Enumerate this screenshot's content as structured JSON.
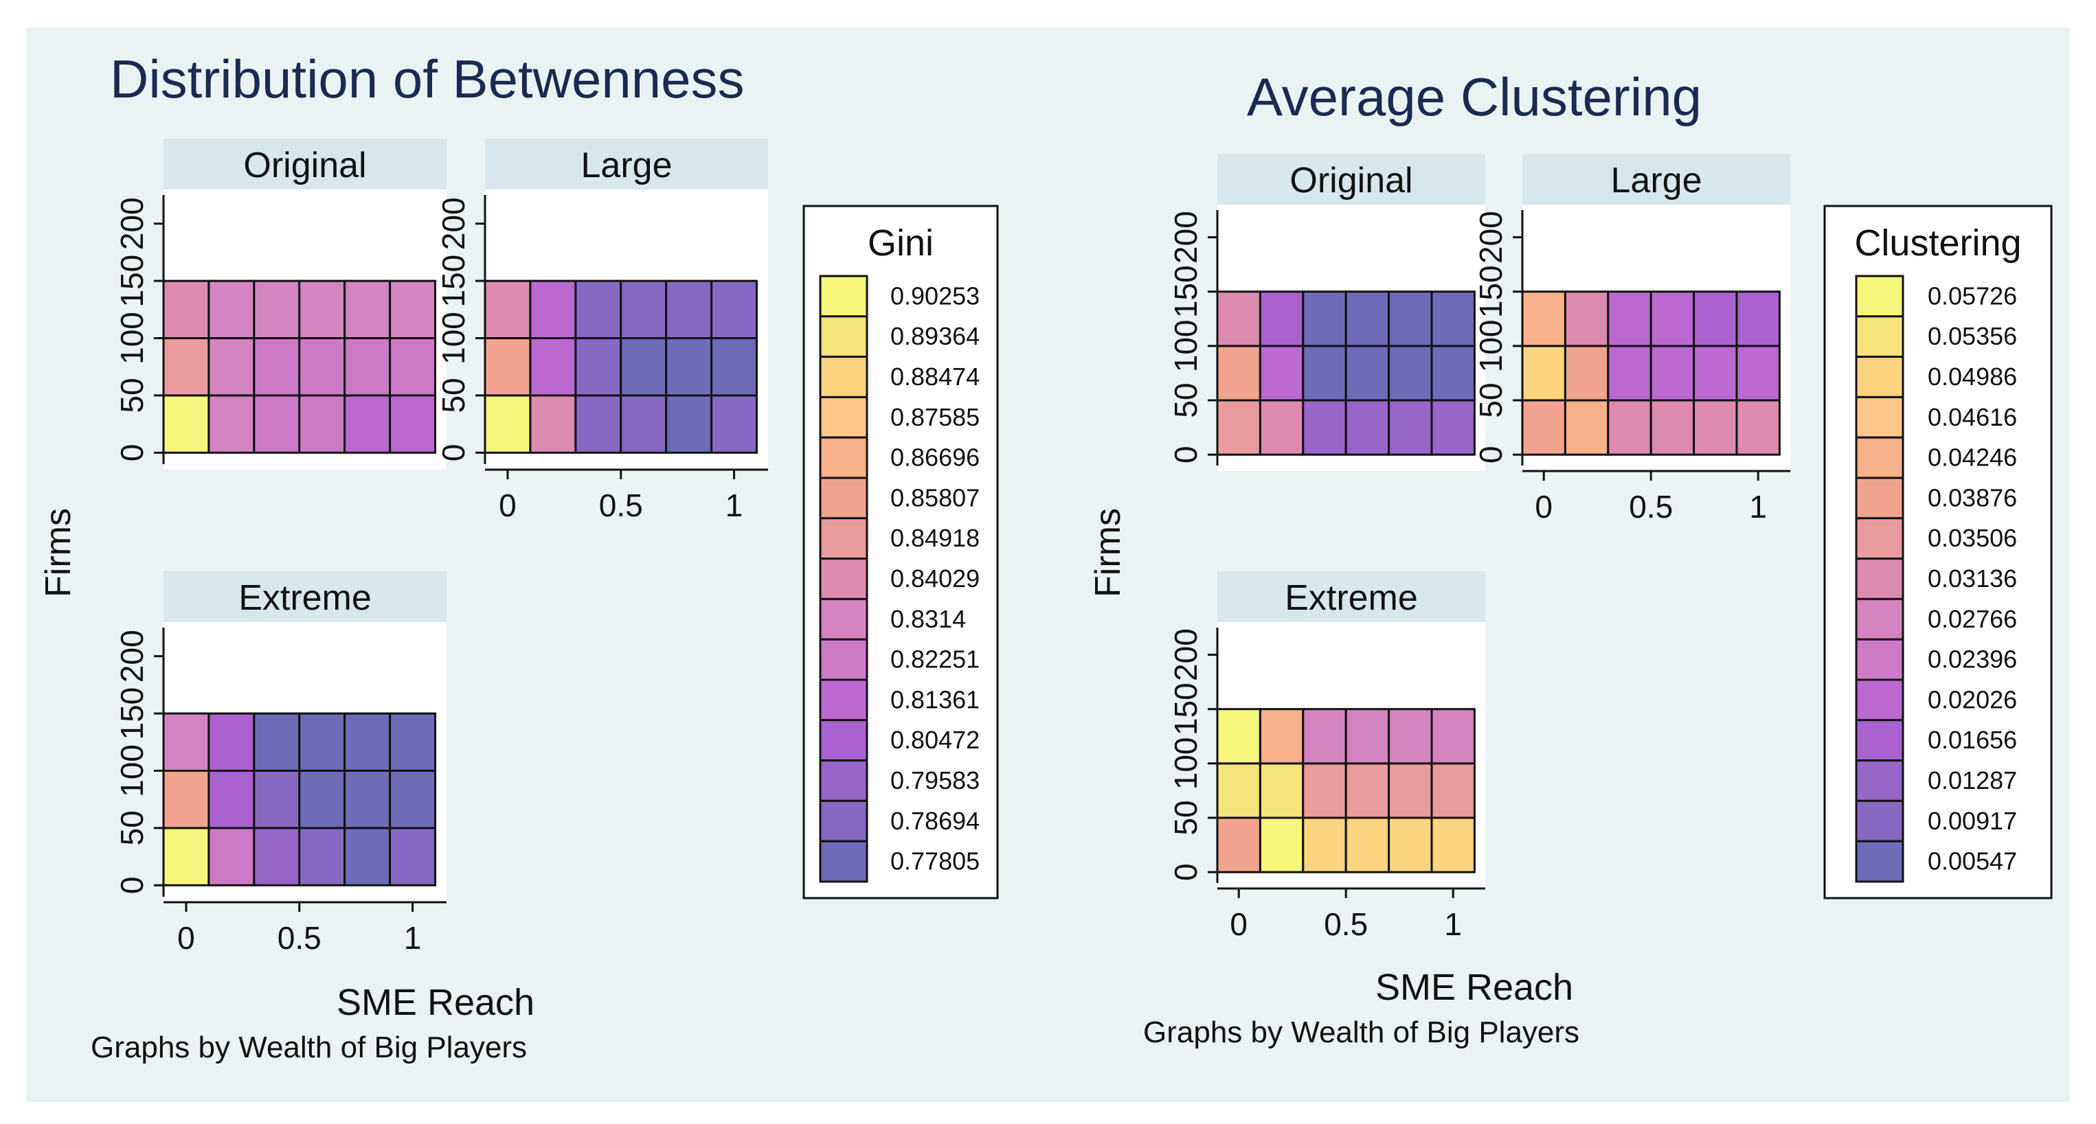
{
  "colors": {
    "page_bg": "#ffffff",
    "figure_bg": "#eaf2f3",
    "title_color": "#1a2a52",
    "strip_bg": "#d9e6ec",
    "panel_bg": "#ffffff",
    "cell_border": "#111111",
    "text": "#111111",
    "palette": [
      "#f5f77c",
      "#f7e37c",
      "#fad481",
      "#fbc687",
      "#f8b18b",
      "#f1a38f",
      "#e89a9c",
      "#dd8aaf",
      "#d484c0",
      "#cd79c6",
      "#bb69d0",
      "#a962cf",
      "#9865c9",
      "#8669c3",
      "#6f6bb8"
    ]
  },
  "chart_data": [
    {
      "type": "heatmap",
      "title": "Distribution of Betwenness",
      "xlabel": "SME Reach",
      "ylabel": "Firms",
      "note": "Graphs by Wealth of Big Players",
      "xticks": [
        "0",
        "0.5",
        "1"
      ],
      "yticks": [
        "0",
        "50",
        "100",
        "150",
        "200"
      ],
      "xlim": [
        -0.1,
        1.15
      ],
      "ylim": [
        -10,
        225
      ],
      "x": [
        0.1,
        0.3,
        0.5,
        0.7,
        0.9,
        1.1
      ],
      "y": [
        50,
        100,
        150
      ],
      "legend": {
        "title": "Gini",
        "entries": [
          "0.90253",
          "0.89364",
          "0.88474",
          "0.87585",
          "0.86696",
          "0.85807",
          "0.84918",
          "0.84029",
          "0.8314",
          "0.82251",
          "0.81361",
          "0.80472",
          "0.79583",
          "0.78694",
          "0.77805"
        ]
      },
      "panels": [
        {
          "label": "Original",
          "show_x_axis": false,
          "cells": [
            [
              0,
              8,
              9,
              9,
              10,
              10
            ],
            [
              6,
              8,
              9,
              9,
              9,
              9
            ],
            [
              7,
              8,
              8,
              8,
              8,
              8
            ]
          ]
        },
        {
          "label": "Large",
          "show_x_axis": true,
          "cells": [
            [
              0,
              7,
              13,
              13,
              14,
              13
            ],
            [
              5,
              10,
              13,
              14,
              14,
              14
            ],
            [
              7,
              10,
              13,
              13,
              13,
              13
            ]
          ]
        },
        {
          "label": "Extreme",
          "show_x_axis": true,
          "cells": [
            [
              0,
              9,
              12,
              13,
              14,
              13
            ],
            [
              5,
              11,
              13,
              14,
              14,
              14
            ],
            [
              8,
              11,
              14,
              14,
              14,
              14
            ]
          ]
        }
      ]
    },
    {
      "type": "heatmap",
      "title": "Average Clustering",
      "xlabel": "SME Reach",
      "ylabel": "Firms",
      "note": "Graphs by Wealth of Big Players",
      "xticks": [
        "0",
        "0.5",
        "1"
      ],
      "yticks": [
        "0",
        "50",
        "100",
        "150",
        "200"
      ],
      "xlim": [
        -0.1,
        1.15
      ],
      "ylim": [
        -10,
        225
      ],
      "x": [
        0.1,
        0.3,
        0.5,
        0.7,
        0.9,
        1.1
      ],
      "y": [
        50,
        100,
        150
      ],
      "legend": {
        "title": "Clustering",
        "entries": [
          "0.05726",
          "0.05356",
          "0.04986",
          "0.04616",
          "0.04246",
          "0.03876",
          "0.03506",
          "0.03136",
          "0.02766",
          "0.02396",
          "0.02026",
          "0.01656",
          "0.01287",
          "0.00917",
          "0.00547"
        ]
      },
      "panels": [
        {
          "label": "Original",
          "show_x_axis": false,
          "cells": [
            [
              6,
              7,
              12,
              12,
              12,
              12
            ],
            [
              5,
              10,
              14,
              14,
              14,
              14
            ],
            [
              7,
              11,
              14,
              14,
              14,
              14
            ]
          ]
        },
        {
          "label": "Large",
          "show_x_axis": true,
          "cells": [
            [
              5,
              4,
              7,
              7,
              7,
              7
            ],
            [
              2,
              5,
              10,
              10,
              10,
              10
            ],
            [
              4,
              7,
              10,
              10,
              11,
              11
            ]
          ]
        },
        {
          "label": "Extreme",
          "show_x_axis": true,
          "cells": [
            [
              5,
              0,
              2,
              2,
              2,
              2
            ],
            [
              1,
              1,
              6,
              6,
              6,
              6
            ],
            [
              0,
              4,
              8,
              8,
              8,
              8
            ]
          ]
        }
      ]
    }
  ]
}
